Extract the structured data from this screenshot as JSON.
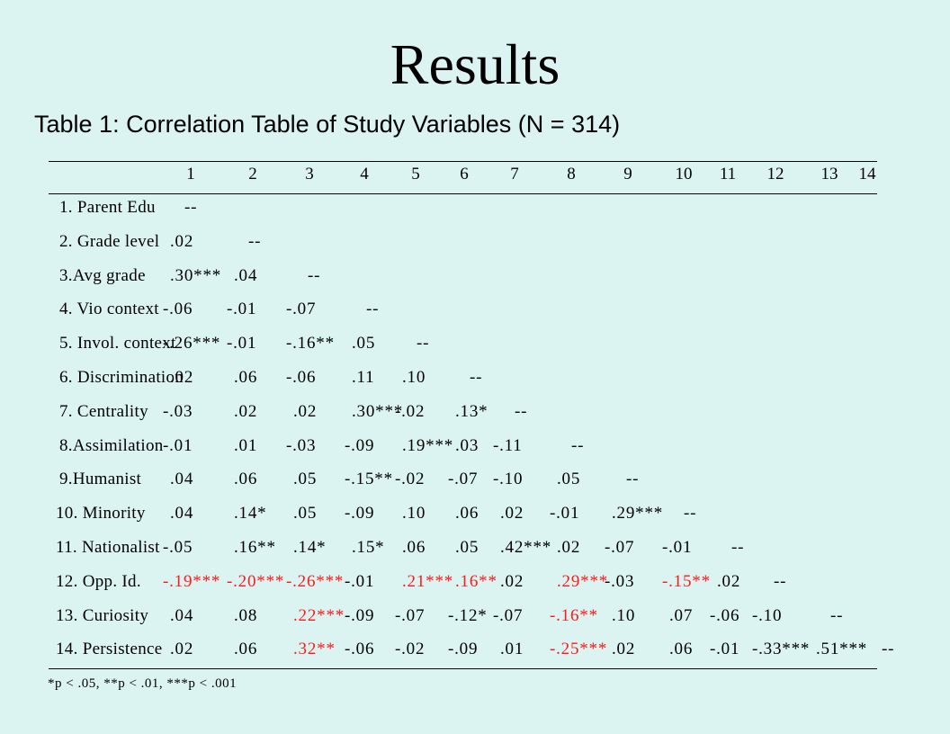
{
  "slide": {
    "title": "Results",
    "table_caption": "Table 1: Correlation Table of Study Variables (N = 314)",
    "footnote": "*p < .05, **p < .01, ***p < .001"
  },
  "table": {
    "columns": [
      "1",
      "2",
      "3",
      "4",
      "5",
      "6",
      "7",
      "8",
      "9",
      "10",
      "11",
      "12",
      "13",
      "14"
    ],
    "highlight_color": "#ff1a1a",
    "rows": [
      {
        "label": "1. Parent Edu",
        "cells": [
          {
            "v": "--",
            "red": false
          }
        ]
      },
      {
        "label": "2. Grade level",
        "cells": [
          {
            "v": ".02",
            "red": false
          },
          {
            "v": "--",
            "red": false
          }
        ]
      },
      {
        "label": "3.Avg grade",
        "cells": [
          {
            "v": ".30***",
            "red": false
          },
          {
            "v": ".04",
            "red": false
          },
          {
            "v": "--",
            "red": false
          }
        ]
      },
      {
        "label": "4. Vio context",
        "cells": [
          {
            "v": "-.06",
            "red": false
          },
          {
            "v": "-.01",
            "red": false
          },
          {
            "v": "-.07",
            "red": false
          },
          {
            "v": "--",
            "red": false
          }
        ]
      },
      {
        "label": "5. Invol. context",
        "cells": [
          {
            "v": "-.26***",
            "red": false
          },
          {
            "v": "-.01",
            "red": false
          },
          {
            "v": "-.16**",
            "red": false
          },
          {
            "v": ".05",
            "red": false
          },
          {
            "v": "--",
            "red": false
          }
        ]
      },
      {
        "label": "6. Discrimination",
        "cells": [
          {
            "v": ".02",
            "red": false
          },
          {
            "v": ".06",
            "red": false
          },
          {
            "v": "-.06",
            "red": false
          },
          {
            "v": ".11",
            "red": false
          },
          {
            "v": ".10",
            "red": false
          },
          {
            "v": "--",
            "red": false
          }
        ]
      },
      {
        "label": "7. Centrality",
        "cells": [
          {
            "v": "-.03",
            "red": false
          },
          {
            "v": ".02",
            "red": false
          },
          {
            "v": ".02",
            "red": false
          },
          {
            "v": ".30***",
            "red": false
          },
          {
            "v": "-.02",
            "red": false
          },
          {
            "v": ".13*",
            "red": false
          },
          {
            "v": "--",
            "red": false
          }
        ]
      },
      {
        "label": "8.Assimilation",
        "cells": [
          {
            "v": "-.01",
            "red": false
          },
          {
            "v": ".01",
            "red": false
          },
          {
            "v": "-.03",
            "red": false
          },
          {
            "v": "-.09",
            "red": false
          },
          {
            "v": ".19***",
            "red": false
          },
          {
            "v": ".03",
            "red": false
          },
          {
            "v": "-.11",
            "red": false
          },
          {
            "v": "--",
            "red": false
          }
        ]
      },
      {
        "label": "9.Humanist",
        "cells": [
          {
            "v": ".04",
            "red": false
          },
          {
            "v": ".06",
            "red": false
          },
          {
            "v": ".05",
            "red": false
          },
          {
            "v": "-.15**",
            "red": false
          },
          {
            "v": "-.02",
            "red": false
          },
          {
            "v": "-.07",
            "red": false
          },
          {
            "v": "-.10",
            "red": false
          },
          {
            "v": ".05",
            "red": false
          },
          {
            "v": "--",
            "red": false
          }
        ]
      },
      {
        "label": "10. Minority",
        "cells": [
          {
            "v": ".04",
            "red": false
          },
          {
            "v": ".14*",
            "red": false
          },
          {
            "v": ".05",
            "red": false
          },
          {
            "v": "-.09",
            "red": false
          },
          {
            "v": ".10",
            "red": false
          },
          {
            "v": ".06",
            "red": false
          },
          {
            "v": ".02",
            "red": false
          },
          {
            "v": "-.01",
            "red": false
          },
          {
            "v": ".29***",
            "red": false
          },
          {
            "v": "--",
            "red": false
          }
        ]
      },
      {
        "label": "11. Nationalist",
        "cells": [
          {
            "v": "-.05",
            "red": false
          },
          {
            "v": ".16**",
            "red": false
          },
          {
            "v": ".14*",
            "red": false
          },
          {
            "v": ".15*",
            "red": false
          },
          {
            "v": ".06",
            "red": false
          },
          {
            "v": ".05",
            "red": false
          },
          {
            "v": ".42***",
            "red": false
          },
          {
            "v": ".02",
            "red": false
          },
          {
            "v": "-.07",
            "red": false
          },
          {
            "v": "-.01",
            "red": false
          },
          {
            "v": "--",
            "red": false
          }
        ]
      },
      {
        "label": "12. Opp. Id.",
        "cells": [
          {
            "v": "-.19***",
            "red": true
          },
          {
            "v": "-.20***",
            "red": true
          },
          {
            "v": "-.26***",
            "red": true
          },
          {
            "v": "-.01",
            "red": false
          },
          {
            "v": ".21***",
            "red": true
          },
          {
            "v": ".16**",
            "red": true
          },
          {
            "v": ".02",
            "red": false
          },
          {
            "v": ".29***",
            "red": true
          },
          {
            "v": "-.03",
            "red": false
          },
          {
            "v": "-.15**",
            "red": true
          },
          {
            "v": ".02",
            "red": false
          },
          {
            "v": "--",
            "red": false
          }
        ]
      },
      {
        "label": "13. Curiosity",
        "cells": [
          {
            "v": ".04",
            "red": false
          },
          {
            "v": ".08",
            "red": false
          },
          {
            "v": ".22***",
            "red": true
          },
          {
            "v": "-.09",
            "red": false
          },
          {
            "v": "-.07",
            "red": false
          },
          {
            "v": "-.12*",
            "red": false
          },
          {
            "v": "-.07",
            "red": false
          },
          {
            "v": "-.16**",
            "red": true
          },
          {
            "v": ".10",
            "red": false
          },
          {
            "v": ".07",
            "red": false
          },
          {
            "v": "-.06",
            "red": false
          },
          {
            "v": "-.10",
            "red": false
          },
          {
            "v": "--",
            "red": false
          }
        ]
      },
      {
        "label": "14. Persistence",
        "cells": [
          {
            "v": ".02",
            "red": false
          },
          {
            "v": ".06",
            "red": false
          },
          {
            "v": ".32**",
            "red": true
          },
          {
            "v": "-.06",
            "red": false
          },
          {
            "v": "-.02",
            "red": false
          },
          {
            "v": "-.09",
            "red": false
          },
          {
            "v": ".01",
            "red": false
          },
          {
            "v": "-.25***",
            "red": true
          },
          {
            "v": ".02",
            "red": false
          },
          {
            "v": ".06",
            "red": false
          },
          {
            "v": "-.01",
            "red": false
          },
          {
            "v": "-.33***",
            "red": false
          },
          {
            "v": ".51***",
            "red": false
          },
          {
            "v": "--",
            "red": false
          }
        ]
      }
    ]
  }
}
